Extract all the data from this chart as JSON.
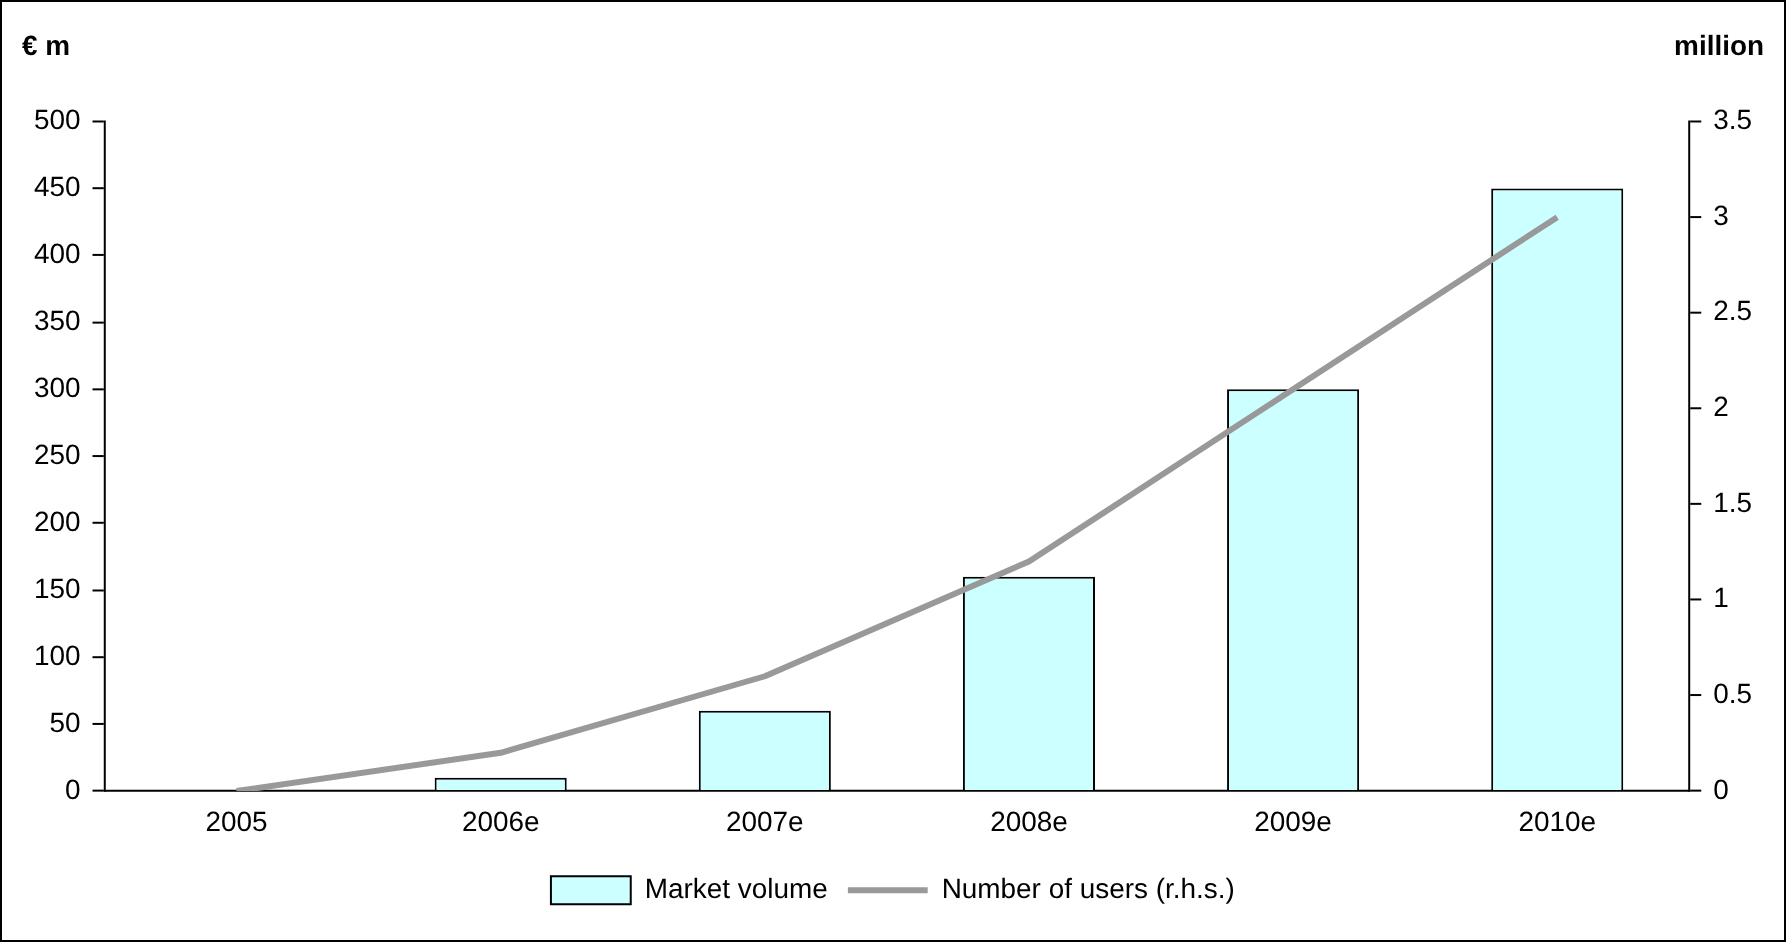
{
  "chart_data": {
    "type": "bar",
    "ylabel": "€ m",
    "y2label": "million",
    "categories": [
      "2005",
      "2006e",
      "2007e",
      "2008e",
      "2009e",
      "2010e"
    ],
    "series": [
      {
        "name": "Market volume",
        "color": "#ccffff",
        "values": [
          0,
          10,
          60,
          160,
          300,
          450
        ]
      },
      {
        "name": "Number of users (r.h.s.)",
        "type": "line",
        "axis": "y2",
        "color": "#999999",
        "values": [
          0,
          0.2,
          0.6,
          1.2,
          2.1,
          3.0
        ]
      }
    ],
    "ylim": [
      0,
      500
    ],
    "yticks": [
      0,
      50,
      100,
      150,
      200,
      250,
      300,
      350,
      400,
      450,
      500
    ],
    "y2lim": [
      0,
      3.5
    ],
    "y2ticks": [
      0,
      0.5,
      1,
      1.5,
      2,
      2.5,
      3,
      3.5
    ],
    "grid": false,
    "legend": "bottom",
    "marker": "none",
    "line_style": "solid"
  }
}
